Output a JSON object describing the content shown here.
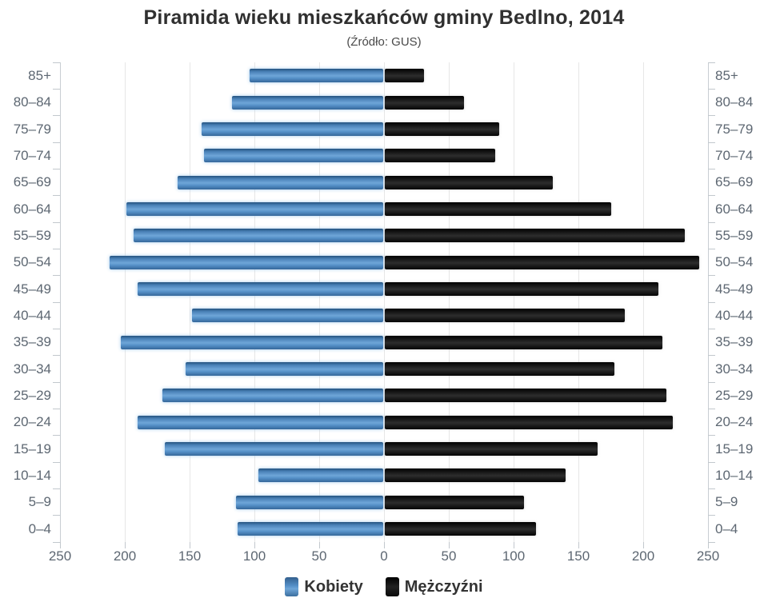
{
  "title": "Piramida wieku mieszkańców gminy Bedlno, 2014",
  "subtitle": "(Źródło: GUS)",
  "legend": {
    "women_label": "Kobiety",
    "men_label": "Mężczyźni"
  },
  "colors": {
    "women_bar": "#5590c8",
    "men_bar": "#141414",
    "axis_label": "#5d6772",
    "gridline": "#e7e7e7",
    "axis_line": "#c8ced3",
    "title_text": "#303030"
  },
  "chart_data": {
    "type": "bar",
    "variant": "population-pyramid",
    "title": "Piramida wieku mieszkańców gminy Bedlno, 2014",
    "subtitle": "(Źródło: GUS)",
    "categories": [
      "85+",
      "80–84",
      "75–79",
      "70–74",
      "65–69",
      "60–64",
      "55–59",
      "50–54",
      "45–49",
      "40–44",
      "35–39",
      "30–34",
      "25–29",
      "20–24",
      "15–19",
      "10–14",
      "5–9",
      "0–4"
    ],
    "series": [
      {
        "name": "Kobiety",
        "side": "left",
        "color": "#5590c8",
        "values": [
          104,
          117,
          141,
          139,
          159,
          199,
          193,
          212,
          190,
          148,
          203,
          153,
          171,
          190,
          169,
          97,
          114,
          113
        ]
      },
      {
        "name": "Mężczyźni",
        "side": "right",
        "color": "#141414",
        "values": [
          31,
          62,
          89,
          86,
          130,
          175,
          232,
          243,
          212,
          186,
          215,
          178,
          218,
          223,
          165,
          140,
          108,
          117
        ]
      }
    ],
    "x_ticks": [
      250,
      200,
      150,
      100,
      50,
      0,
      50,
      100,
      150,
      200,
      250
    ],
    "xlim": [
      0,
      250
    ],
    "grid": true,
    "legend_position": "bottom"
  }
}
